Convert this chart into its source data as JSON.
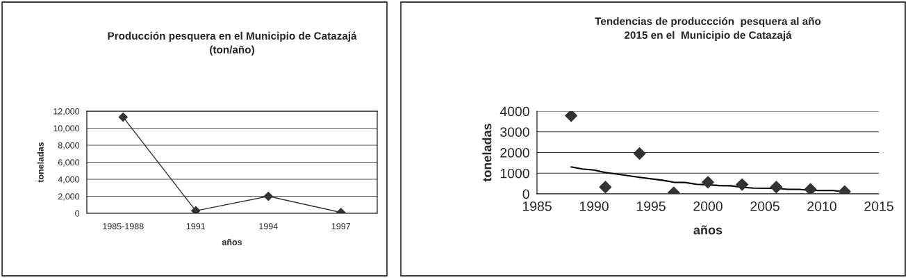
{
  "chart_data": [
    {
      "type": "line",
      "title": "Producción pesquera en el Municipio de Catazajá\n(ton/año)",
      "xlabel": "años",
      "ylabel": "toneladas",
      "categories": [
        "1985-1988",
        "1991",
        "1994",
        "1997"
      ],
      "series": [
        {
          "color": "#333333",
          "values": [
            11300,
            300,
            2000,
            100
          ]
        }
      ],
      "ylim": [
        0,
        12000
      ],
      "yticks": [
        {
          "value": 0,
          "label": "0"
        },
        {
          "value": 2000,
          "label": "2,000"
        },
        {
          "value": 4000,
          "label": "4,000"
        },
        {
          "value": 6000,
          "label": "6,000"
        },
        {
          "value": 8000,
          "label": "8,000"
        },
        {
          "value": 10000,
          "label": "10,000"
        },
        {
          "value": 12000,
          "label": "12,000"
        }
      ],
      "grid": "y",
      "marker": "diamond",
      "legend": false
    },
    {
      "type": "scatter",
      "title": "Tendencias de produccción  pesquera al año\n2015 en el  Municipio de Catazajá",
      "xlabel": "años",
      "ylabel": "toneladas",
      "series": [
        {
          "type": "scatter",
          "color": "#333333",
          "x": [
            1988,
            1991,
            1994,
            1997,
            2000,
            2003,
            2006,
            2009,
            2012
          ],
          "values": [
            3780,
            330,
            1950,
            50,
            560,
            450,
            330,
            220,
            110
          ]
        },
        {
          "type": "line",
          "color": "#000000",
          "marker": "none",
          "x": [
            1988,
            1989,
            1990,
            1991,
            1992,
            1994,
            1996,
            1997,
            1998,
            1999,
            2000,
            2001,
            2002,
            2003,
            2004,
            2006,
            2007,
            2008,
            2009,
            2010,
            2011,
            2012
          ],
          "values": [
            1300,
            1200,
            1150,
            1030,
            960,
            800,
            660,
            560,
            550,
            460,
            440,
            400,
            390,
            320,
            280,
            270,
            220,
            220,
            170,
            160,
            160,
            100
          ]
        }
      ],
      "xlim": [
        1985,
        2015
      ],
      "xticks": [
        1985,
        1990,
        1995,
        2000,
        2005,
        2010,
        2015
      ],
      "ylim": [
        0,
        4000
      ],
      "yticks": [
        0,
        1000,
        2000,
        3000,
        4000
      ],
      "grid": "y",
      "marker": "diamond",
      "legend": false
    }
  ]
}
